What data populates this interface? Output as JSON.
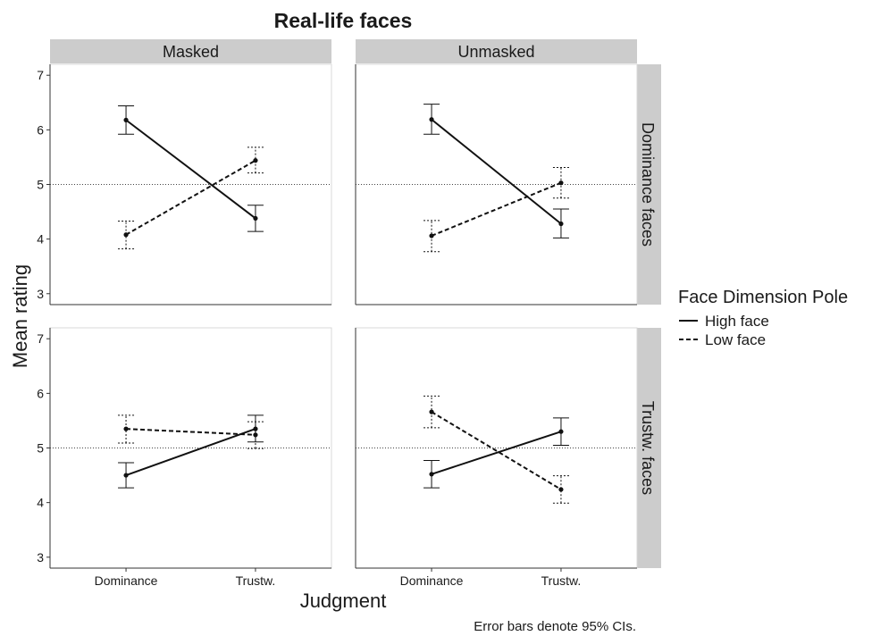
{
  "chart_data": {
    "type": "line",
    "title": "Real-life faces",
    "xlabel": "Judgment",
    "ylabel": "Mean rating",
    "caption": "Error bars denote 95% CIs.",
    "categories": [
      "Dominance",
      "Trustw."
    ],
    "ylim": [
      2.8,
      7.2
    ],
    "yticks": [
      3,
      4,
      5,
      6,
      7
    ],
    "reference_line": 5,
    "columns": [
      "Masked",
      "Unmasked"
    ],
    "rows": [
      "Dominance faces",
      "Trustw. faces"
    ],
    "legend": {
      "title": "Face Dimension Pole",
      "position": "right",
      "entries": [
        "High face",
        "Low face"
      ]
    },
    "panels": [
      {
        "column": "Masked",
        "row": "Dominance faces",
        "series": [
          {
            "name": "High face",
            "values": [
              6.18,
              4.38
            ],
            "lower": [
              5.92,
              4.14
            ],
            "upper": [
              6.44,
              4.62
            ]
          },
          {
            "name": "Low face",
            "values": [
              4.08,
              5.44
            ],
            "lower": [
              3.82,
              5.21
            ],
            "upper": [
              4.33,
              5.68
            ]
          }
        ]
      },
      {
        "column": "Unmasked",
        "row": "Dominance faces",
        "series": [
          {
            "name": "High face",
            "values": [
              6.19,
              4.28
            ],
            "lower": [
              5.92,
              4.02
            ],
            "upper": [
              6.47,
              4.55
            ]
          },
          {
            "name": "Low face",
            "values": [
              4.06,
              5.03
            ],
            "lower": [
              3.77,
              4.75
            ],
            "upper": [
              4.34,
              5.31
            ]
          }
        ]
      },
      {
        "column": "Masked",
        "row": "Trustw. faces",
        "series": [
          {
            "name": "High face",
            "values": [
              4.5,
              5.35
            ],
            "lower": [
              4.27,
              5.11
            ],
            "upper": [
              4.73,
              5.6
            ]
          },
          {
            "name": "Low face",
            "values": [
              5.35,
              5.24
            ],
            "lower": [
              5.09,
              4.99
            ],
            "upper": [
              5.6,
              5.48
            ]
          }
        ]
      },
      {
        "column": "Unmasked",
        "row": "Trustw. faces",
        "series": [
          {
            "name": "High face",
            "values": [
              4.52,
              5.3
            ],
            "lower": [
              4.27,
              5.05
            ],
            "upper": [
              4.77,
              5.55
            ]
          },
          {
            "name": "Low face",
            "values": [
              5.66,
              4.24
            ],
            "lower": [
              5.37,
              3.99
            ],
            "upper": [
              5.95,
              4.49
            ]
          }
        ]
      }
    ]
  }
}
